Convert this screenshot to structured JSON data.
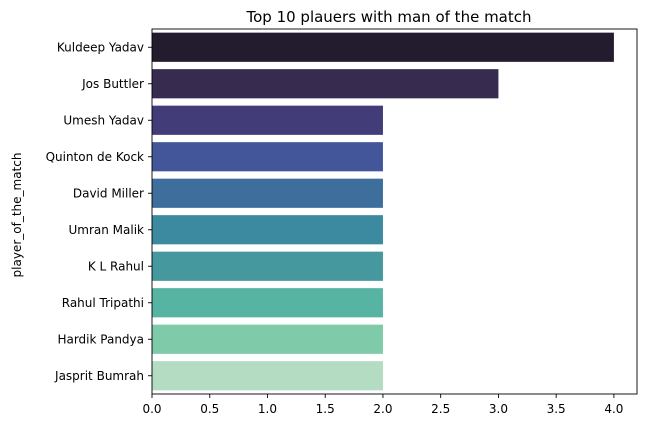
{
  "chart_data": {
    "type": "bar",
    "orientation": "horizontal",
    "title": "Top 10 plauers with man of the match",
    "xlabel": "",
    "ylabel": "player_of_the_match",
    "categories": [
      "Kuldeep Yadav",
      "Jos Buttler",
      "Umesh Yadav",
      "Quinton de Kock",
      "David Miller",
      "Umran Malik",
      "K L Rahul",
      "Rahul Tripathi",
      "Hardik Pandya",
      "Jasprit Bumrah"
    ],
    "values": [
      4,
      3,
      2,
      2,
      2,
      2,
      2,
      2,
      2,
      2
    ],
    "colors": [
      "#231b2e",
      "#372b4f",
      "#423c78",
      "#43569a",
      "#3e6e9b",
      "#3b8aa0",
      "#44989e",
      "#57b3a2",
      "#7ecaa9",
      "#b4dcc2"
    ],
    "xlim": [
      0,
      4.2
    ],
    "xticks": [
      "0.0",
      "0.5",
      "1.0",
      "1.5",
      "2.0",
      "2.5",
      "3.0",
      "3.5",
      "4.0"
    ],
    "grid": false,
    "legend": "none"
  }
}
